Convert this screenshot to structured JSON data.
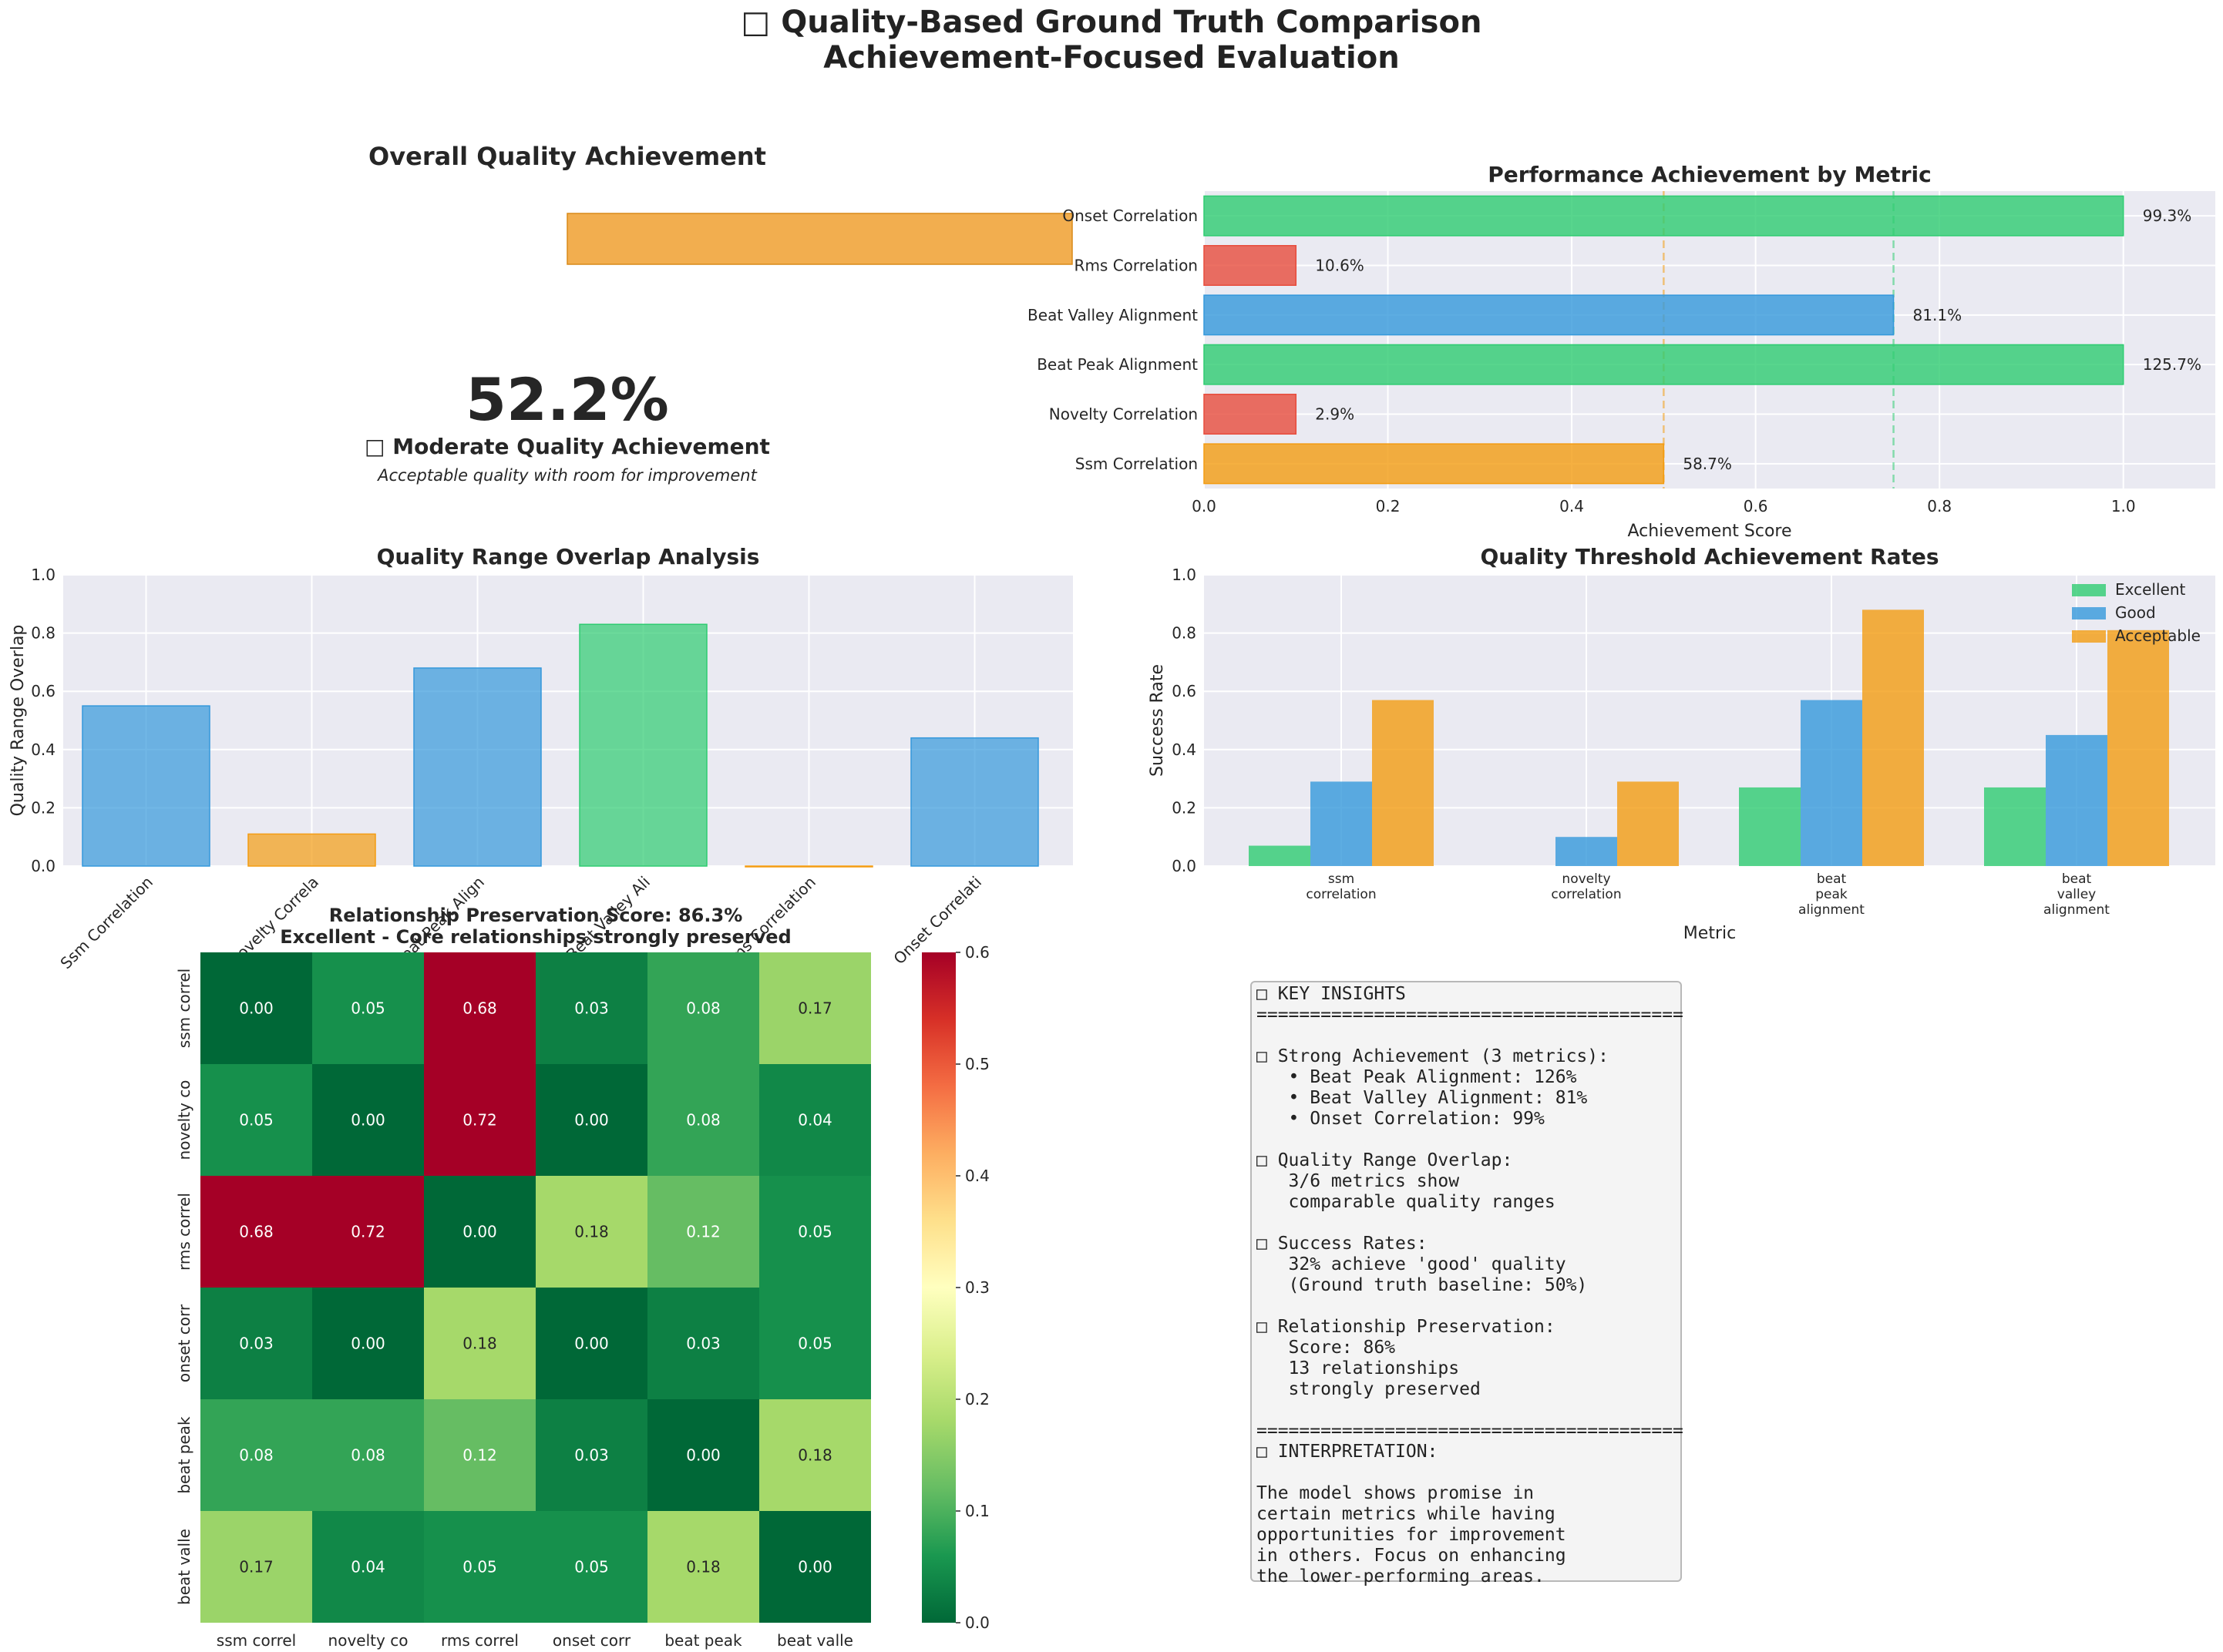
{
  "suptitle": [
    "□ Quality-Based Ground Truth Comparison",
    "Achievement-Focused Evaluation"
  ],
  "overall": {
    "title": "Overall Quality Achievement",
    "value": "52.2%",
    "fraction": 0.522,
    "status": "□ Moderate Quality Achievement",
    "subtitle": "Acceptable quality with room for improvement",
    "bar_color": "#f0a030"
  },
  "colors": {
    "excellent": "#2ecc71",
    "good": "#3498db",
    "acceptable": "#f39c12",
    "poor": "#e74c3c",
    "panel_bg": "#eaeaf2"
  },
  "chart_data": [
    {
      "id": "performance",
      "type": "bar",
      "orientation": "horizontal",
      "title": "Performance Achievement by Metric",
      "xlabel": "Achievement Score",
      "xlim": [
        0,
        1.1
      ],
      "xticks": [
        "0.0",
        "0.2",
        "0.4",
        "0.6",
        "0.8",
        "1.0"
      ],
      "categories": [
        "Onset Correlation",
        "Rms Correlation",
        "Beat Valley Alignment",
        "Beat Peak Alignment",
        "Novelty Correlation",
        "Ssm Correlation"
      ],
      "values": [
        1.0,
        0.1,
        0.75,
        1.0,
        0.1,
        0.5
      ],
      "labels": [
        "99.3%",
        "10.6%",
        "81.1%",
        "125.7%",
        "2.9%",
        "58.7%"
      ],
      "bar_colors": [
        "#2ecc71",
        "#e74c3c",
        "#3498db",
        "#2ecc71",
        "#e74c3c",
        "#f39c12"
      ],
      "reference_lines": [
        0.5,
        0.75
      ],
      "grid": true
    },
    {
      "id": "overlap",
      "type": "bar",
      "title": "Quality Range Overlap Analysis",
      "ylabel": "Quality Range Overlap",
      "ylim": [
        0,
        1.0
      ],
      "yticks": [
        "0.0",
        "0.2",
        "0.4",
        "0.6",
        "0.8",
        "1.0"
      ],
      "categories": [
        "Ssm Correlation",
        "Novelty Correla",
        "Beat Peak Align",
        "Beat Valley Ali",
        "Rms Correlation",
        "Onset Correlati"
      ],
      "values": [
        0.55,
        0.11,
        0.68,
        0.83,
        0.0,
        0.44
      ],
      "bar_colors": [
        "#3498db",
        "#f39c12",
        "#3498db",
        "#2ecc71",
        "#f39c12",
        "#3498db"
      ],
      "grid": true
    },
    {
      "id": "threshold",
      "type": "bar",
      "title": "Quality Threshold Achievement Rates",
      "xlabel": "Metric",
      "ylabel": "Success Rate",
      "ylim": [
        0,
        1.0
      ],
      "yticks": [
        "0.0",
        "0.2",
        "0.4",
        "0.6",
        "0.8",
        "1.0"
      ],
      "categories": [
        [
          "ssm",
          "correlation"
        ],
        [
          "novelty",
          "correlation"
        ],
        [
          "beat",
          "peak",
          "alignment"
        ],
        [
          "beat",
          "valley",
          "alignment"
        ]
      ],
      "series": [
        {
          "name": "Excellent",
          "color": "#2ecc71",
          "values": [
            0.07,
            0.0,
            0.27,
            0.27
          ]
        },
        {
          "name": "Good",
          "color": "#3498db",
          "values": [
            0.29,
            0.1,
            0.57,
            0.45
          ]
        },
        {
          "name": "Acceptable",
          "color": "#f39c12",
          "values": [
            0.57,
            0.29,
            0.88,
            0.81
          ]
        }
      ],
      "legend": "top-right",
      "grid": true
    },
    {
      "id": "heatmap",
      "type": "heatmap",
      "title": [
        "Relationship Preservation Score: 86.3%",
        "Excellent - Core relationships strongly preserved"
      ],
      "rows": [
        "ssm correl",
        "novelty co",
        "rms correl",
        "onset corr",
        "beat peak",
        "beat valle"
      ],
      "cols": [
        "ssm correl",
        "novelty co",
        "rms correl",
        "onset corr",
        "beat peak",
        "beat valle"
      ],
      "values": [
        [
          0.0,
          0.05,
          0.68,
          0.03,
          0.08,
          0.17
        ],
        [
          0.05,
          0.0,
          0.72,
          0.0,
          0.08,
          0.04
        ],
        [
          0.68,
          0.72,
          0.0,
          0.18,
          0.12,
          0.05
        ],
        [
          0.03,
          0.0,
          0.18,
          0.0,
          0.03,
          0.05
        ],
        [
          0.08,
          0.08,
          0.12,
          0.03,
          0.0,
          0.18
        ],
        [
          0.17,
          0.04,
          0.05,
          0.05,
          0.18,
          0.0
        ]
      ],
      "vmin": 0.0,
      "vmax": 0.6,
      "colorbar_ticks": [
        "0.0",
        "0.1",
        "0.2",
        "0.3",
        "0.4",
        "0.5",
        "0.6"
      ],
      "colormap": "RdYlGn_r"
    }
  ],
  "insights": {
    "lines": [
      "□ KEY INSIGHTS",
      "========================================",
      "",
      "□ Strong Achievement (3 metrics):",
      "   • Beat Peak Alignment: 126%",
      "   • Beat Valley Alignment: 81%",
      "   • Onset Correlation: 99%",
      "",
      "□ Quality Range Overlap:",
      "   3/6 metrics show",
      "   comparable quality ranges",
      "",
      "□ Success Rates:",
      "   32% achieve 'good' quality",
      "   (Ground truth baseline: 50%)",
      "",
      "□ Relationship Preservation:",
      "   Score: 86%",
      "   13 relationships",
      "   strongly preserved",
      "",
      "========================================",
      "□ INTERPRETATION:",
      "",
      "The model shows promise in",
      "certain metrics while having",
      "opportunities for improvement",
      "in others. Focus on enhancing",
      "the lower-performing areas."
    ]
  }
}
